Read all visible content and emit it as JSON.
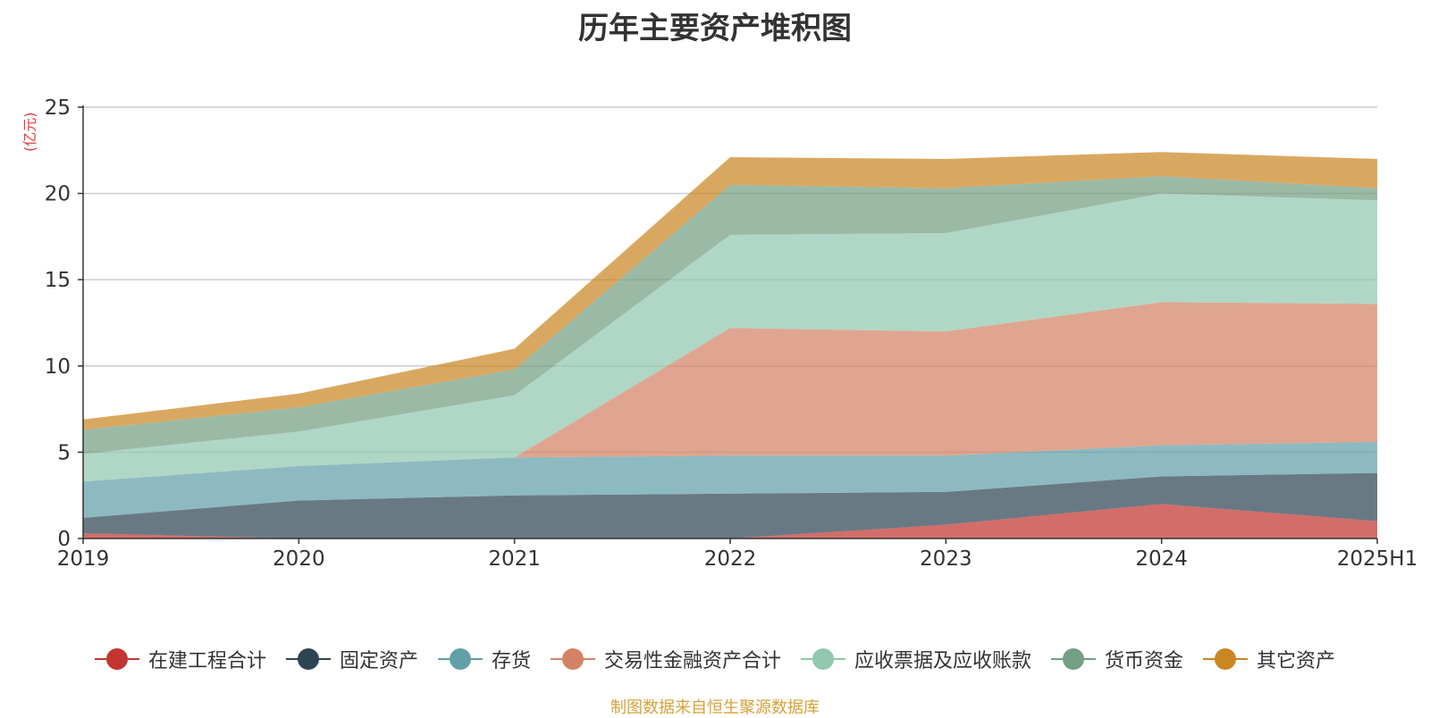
{
  "title": "历年主要资产堆积图",
  "unit": "(亿元)",
  "footer": "制图数据来自恒生聚源数据库",
  "chart_data": {
    "type": "area",
    "stacked": true,
    "title": "历年主要资产堆积图",
    "ylabel": "(亿元)",
    "ylim": [
      0,
      25
    ],
    "yticks": [
      0,
      5,
      10,
      15,
      20,
      25
    ],
    "grid": true,
    "legend_position": "bottom",
    "categories": [
      "2019",
      "2020",
      "2021",
      "2022",
      "2023",
      "2024",
      "2025H1"
    ],
    "series": [
      {
        "name": "在建工程合计",
        "color": "#c23531",
        "values": [
          0.3,
          0.0,
          0.0,
          0.0,
          0.8,
          2.0,
          1.0
        ]
      },
      {
        "name": "固定资产",
        "color": "#2f4554",
        "values": [
          0.9,
          2.2,
          2.5,
          2.6,
          1.9,
          1.6,
          2.8
        ]
      },
      {
        "name": "存货",
        "color": "#61a0a8",
        "values": [
          2.1,
          2.0,
          2.2,
          2.2,
          2.1,
          1.8,
          1.8
        ]
      },
      {
        "name": "交易性金融资产合计",
        "color": "#d48265",
        "values": [
          0.0,
          0.0,
          0.0,
          7.4,
          7.2,
          8.3,
          8.0
        ]
      },
      {
        "name": "应收票据及应收账款",
        "color": "#91c7ae",
        "values": [
          1.6,
          2.0,
          3.6,
          5.4,
          5.7,
          6.3,
          6.0
        ]
      },
      {
        "name": "货币资金",
        "color": "#749f83",
        "values": [
          1.4,
          1.4,
          1.5,
          2.9,
          2.6,
          1.0,
          0.7
        ]
      },
      {
        "name": "其它资产",
        "color": "#ca8622",
        "values": [
          0.6,
          0.8,
          1.2,
          1.6,
          1.7,
          1.4,
          1.7
        ]
      }
    ]
  }
}
